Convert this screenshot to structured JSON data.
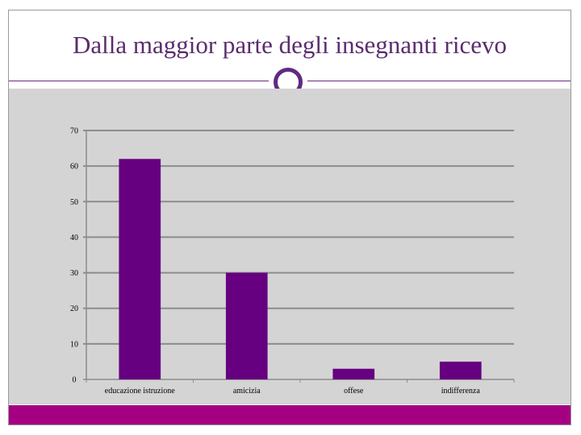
{
  "slide": {
    "title": "Dalla maggior parte degli insegnanti ricevo"
  },
  "colors": {
    "bar": "#660080",
    "panel": "#d4d4d4",
    "footer": "#a50082",
    "gridline": "#8c8c8c",
    "title": "#5a2d6e"
  },
  "chart_data": {
    "type": "bar",
    "categories": [
      "educazione istruzione",
      "amicizia",
      "offese",
      "indifferenza"
    ],
    "values": [
      62,
      30,
      3,
      5
    ],
    "title": "",
    "xlabel": "",
    "ylabel": "",
    "ylim": [
      0,
      70
    ],
    "yticks": [
      0,
      10,
      20,
      30,
      40,
      50,
      60,
      70
    ],
    "grid": true,
    "legend": "none"
  }
}
